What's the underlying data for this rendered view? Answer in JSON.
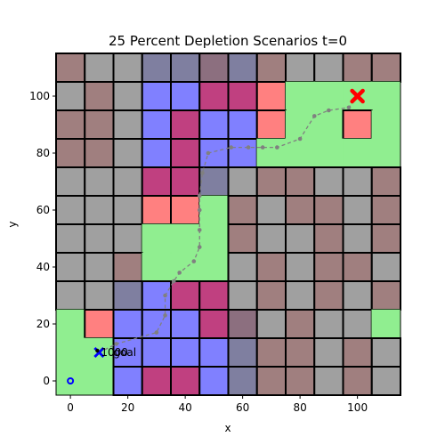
{
  "chart_data": {
    "type": "heatmap",
    "title": "25 Percent Depletion Scenarios t=0",
    "xlabel": "x",
    "ylabel": "y",
    "xlim": [
      -5,
      115
    ],
    "ylim": [
      -5,
      115
    ],
    "xticks": [
      0,
      20,
      40,
      60,
      80,
      100
    ],
    "yticks": [
      0,
      20,
      40,
      60,
      80,
      100
    ],
    "grid_lines": false,
    "cell_size": 10,
    "cell_color_keys": {
      "g": "#a0a0a0",
      "m": "#a07f7f",
      "s": "#7f7fa0",
      "p": "#a07f8c",
      "n": "#8c6f7f",
      "b": "#8080ff",
      "c": "#c04080",
      "r": "#ff8080",
      "L": "#90ee90"
    },
    "cell_rows_top_to_bottom": [
      "mggssnsmggmm",
      "gmgbbccrLLLL",
      "mmgbcbbrLLrL",
      "mmgbcbbLLLLL",
      "gggccsgmmggm",
      "gggrrLmgmmgm",
      "gggLLLmggmgm",
      "ggmLLLgmgmmg",
      "ggsbccgmgmgm",
      "LrbbbcngmggL",
      "LLbbbbsmmgmg",
      "LLbccbsmmgmg"
    ],
    "path": {
      "color": "#808080",
      "points": [
        [
          10,
          10
        ],
        [
          16,
          13
        ],
        [
          30,
          17
        ],
        [
          33,
          23
        ],
        [
          33,
          30
        ],
        [
          36,
          35
        ],
        [
          38,
          38
        ],
        [
          43,
          42
        ],
        [
          45,
          47
        ],
        [
          45,
          53
        ],
        [
          45,
          60
        ],
        [
          45,
          65
        ],
        [
          46,
          73
        ],
        [
          48,
          80
        ],
        [
          56,
          82
        ],
        [
          62,
          82
        ],
        [
          67,
          82
        ],
        [
          72,
          82
        ],
        [
          80,
          85
        ],
        [
          85,
          93
        ],
        [
          90,
          95
        ],
        [
          97,
          96
        ],
        [
          100,
          100
        ]
      ]
    },
    "start_marker": {
      "x": 0,
      "y": 0,
      "color": "#0000ff"
    },
    "goal_marker": {
      "x": 100,
      "y": 100,
      "color": "#ff0000"
    },
    "agent_marker": {
      "x": 10,
      "y": 10,
      "color": "#0000ff"
    },
    "agent_labels": [
      "1000",
      "goal"
    ]
  }
}
